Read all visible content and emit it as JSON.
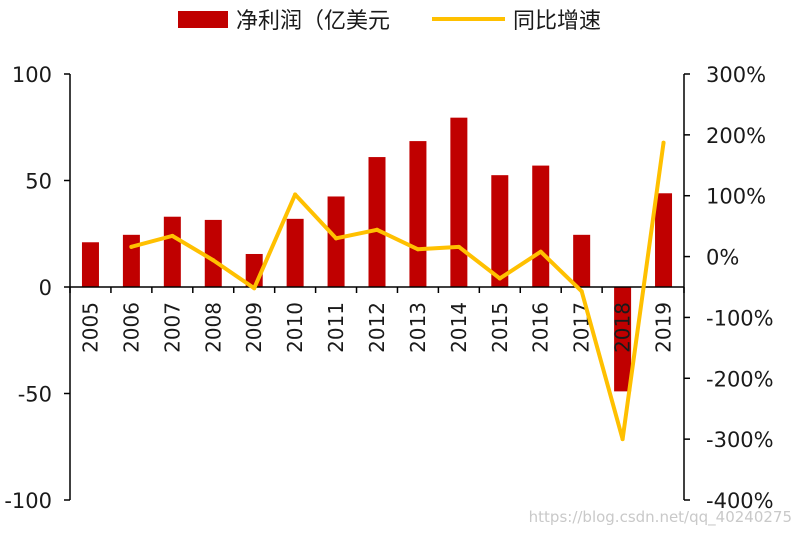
{
  "chart_data": {
    "type": "bar+line",
    "categories": [
      "2005",
      "2006",
      "2007",
      "2008",
      "2009",
      "2010",
      "2011",
      "2012",
      "2013",
      "2014",
      "2015",
      "2016",
      "2017",
      "2018",
      "2019"
    ],
    "series": [
      {
        "name": "净利润（亿美元",
        "type": "bar",
        "axis": "left",
        "color": "#C00000",
        "values": [
          21,
          24.5,
          33,
          31.5,
          15.5,
          32,
          42.5,
          61,
          68.5,
          79.5,
          52.5,
          57,
          24.5,
          -49,
          44
        ]
      },
      {
        "name": "同比增速",
        "type": "line",
        "axis": "right",
        "color": "#FFC000",
        "values": [
          null,
          16,
          34,
          -6,
          -52,
          102,
          30,
          44,
          12,
          16,
          -36,
          8,
          -57,
          -300,
          187
        ]
      }
    ],
    "left_axis": {
      "ylim": [
        -100,
        100
      ],
      "ticks": [
        "100",
        "50",
        "0",
        "-50",
        "-100"
      ]
    },
    "right_axis": {
      "ylim": [
        -400,
        300
      ],
      "ticks": [
        "300%",
        "200%",
        "100%",
        "0%",
        "-100%",
        "-200%",
        "-300%",
        "-400%"
      ]
    },
    "legend": {
      "placement": "top-center"
    },
    "grid": false
  },
  "watermark": "https://blog.csdn.net/qq_40240275"
}
